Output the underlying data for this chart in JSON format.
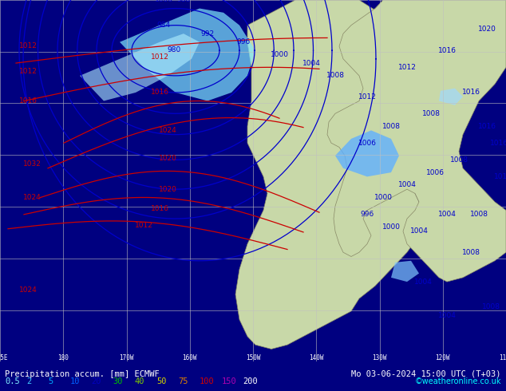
{
  "title_left": "Precipitation accum. [mm] ECMWF",
  "title_right": "Mo 03-06-2024 15:00 UTC (T+03)",
  "colorbar_values": [
    0.5,
    2,
    5,
    10,
    20,
    30,
    40,
    50,
    75,
    100,
    150,
    200
  ],
  "colorbar_colors": [
    "#00ffff",
    "#00bfff",
    "#0080ff",
    "#0000ff",
    "#00ff00",
    "#80ff00",
    "#ffff00",
    "#ff8000",
    "#ff0000",
    "#c000c0",
    "#ffffff"
  ],
  "legend_colors": [
    "#a0e0ff",
    "#40c0ff",
    "#00a0ff",
    "#0060ff",
    "#0000d0",
    "#00c000",
    "#60d000",
    "#d0d000",
    "#e08000",
    "#d00000",
    "#a000a0",
    "#ffffff"
  ],
  "legend_labels": [
    "0.5",
    "2",
    "5",
    "10",
    "20",
    "30",
    "40",
    "50",
    "75",
    "100",
    "150",
    "200"
  ],
  "background_color": "#d8ead8",
  "map_bg": "#c8e8c8",
  "sea_color": "#e8f4f8",
  "copyright": "©weatheronline.co.uk",
  "bottom_bar_color": "#000080",
  "grid_color": "#b0b0b0",
  "label_fontsize": 7.5,
  "title_fontsize": 8
}
